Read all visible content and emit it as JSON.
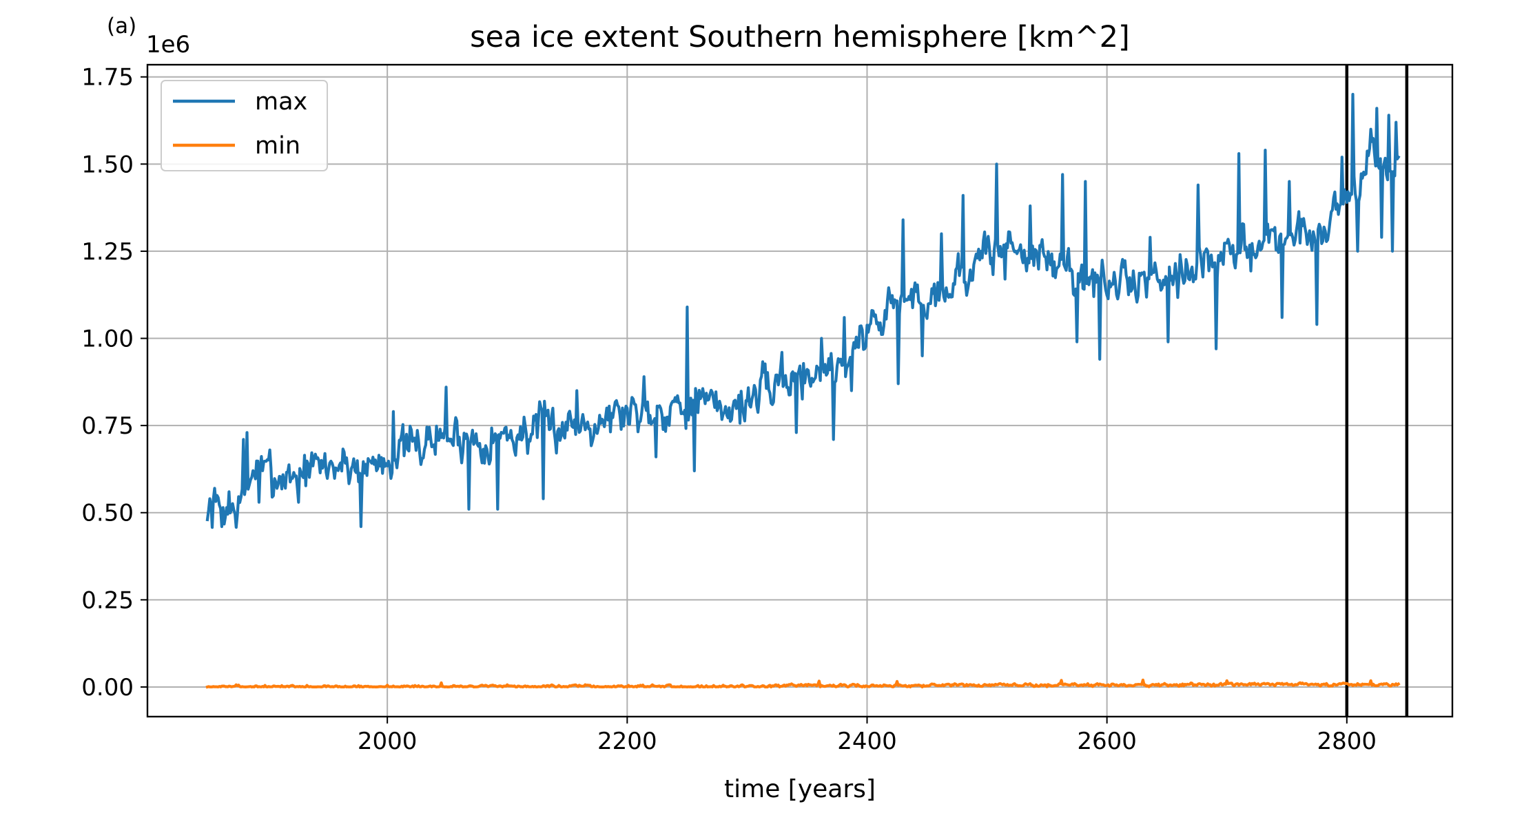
{
  "panel_label": "(a)",
  "chart_data": {
    "type": "line",
    "title": "sea ice extent Southern hemisphere [km^2]",
    "xlabel": "time [years]",
    "ylabel": "",
    "y_offset_label": "1e6",
    "xlim": [
      1800,
      2888
    ],
    "ylim": [
      -0.085,
      1.785
    ],
    "y_scale_factor": 1000000,
    "xticks": [
      2000,
      2200,
      2400,
      2600,
      2800
    ],
    "xtick_labels": [
      "2000",
      "2200",
      "2400",
      "2600",
      "2800"
    ],
    "yticks": [
      0,
      0.25,
      0.5,
      0.75,
      1.0,
      1.25,
      1.5,
      1.75
    ],
    "ytick_labels": [
      "0.00",
      "0.25",
      "0.50",
      "0.75",
      "1.00",
      "1.25",
      "1.50",
      "1.75"
    ],
    "grid": true,
    "legend_position": "top-left",
    "vertical_lines": [
      2800,
      2850
    ],
    "vertical_line_color": "#000000",
    "x_start": 1850,
    "x_end": 2843,
    "series": [
      {
        "name": "max",
        "color": "#1f77b4",
        "anchors": [
          [
            1850,
            0.49
          ],
          [
            1860,
            0.52
          ],
          [
            1870,
            0.5
          ],
          [
            1880,
            0.53
          ],
          [
            1890,
            0.64
          ],
          [
            1900,
            0.6
          ],
          [
            1920,
            0.61
          ],
          [
            1940,
            0.63
          ],
          [
            1960,
            0.64
          ],
          [
            1980,
            0.63
          ],
          [
            2000,
            0.66
          ],
          [
            2020,
            0.69
          ],
          [
            2050,
            0.72
          ],
          [
            2080,
            0.71
          ],
          [
            2100,
            0.72
          ],
          [
            2130,
            0.74
          ],
          [
            2160,
            0.76
          ],
          [
            2200,
            0.79
          ],
          [
            2230,
            0.8
          ],
          [
            2250,
            0.82
          ],
          [
            2280,
            0.8
          ],
          [
            2300,
            0.82
          ],
          [
            2330,
            0.88
          ],
          [
            2350,
            0.9
          ],
          [
            2380,
            0.93
          ],
          [
            2400,
            1.02
          ],
          [
            2420,
            1.1
          ],
          [
            2450,
            1.12
          ],
          [
            2480,
            1.18
          ],
          [
            2500,
            1.24
          ],
          [
            2520,
            1.27
          ],
          [
            2550,
            1.22
          ],
          [
            2580,
            1.18
          ],
          [
            2600,
            1.15
          ],
          [
            2630,
            1.17
          ],
          [
            2660,
            1.2
          ],
          [
            2700,
            1.23
          ],
          [
            2730,
            1.28
          ],
          [
            2760,
            1.3
          ],
          [
            2780,
            1.31
          ],
          [
            2800,
            1.42
          ],
          [
            2820,
            1.5
          ],
          [
            2843,
            1.5
          ]
        ],
        "noise_amplitude": 0.07,
        "seed": 7,
        "spikes": [
          [
            1850,
            0.48
          ],
          [
            1852,
            0.54
          ],
          [
            1856,
            0.57
          ],
          [
            1862,
            0.46
          ],
          [
            1868,
            0.56
          ],
          [
            1880,
            0.71
          ],
          [
            1883,
            0.73
          ],
          [
            1893,
            0.53
          ],
          [
            1902,
            0.68
          ],
          [
            1926,
            0.53
          ],
          [
            1978,
            0.46
          ],
          [
            2005,
            0.79
          ],
          [
            2049,
            0.86
          ],
          [
            2068,
            0.51
          ],
          [
            2092,
            0.51
          ],
          [
            2130,
            0.54
          ],
          [
            2158,
            0.85
          ],
          [
            2214,
            0.89
          ],
          [
            2224,
            0.66
          ],
          [
            2250,
            1.09
          ],
          [
            2256,
            0.62
          ],
          [
            2329,
            0.96
          ],
          [
            2341,
            0.73
          ],
          [
            2362,
            1.0
          ],
          [
            2372,
            0.71
          ],
          [
            2381,
            1.06
          ],
          [
            2387,
            0.85
          ],
          [
            2404,
            1.08
          ],
          [
            2426,
            0.87
          ],
          [
            2430,
            1.34
          ],
          [
            2446,
            0.95
          ],
          [
            2462,
            1.3
          ],
          [
            2480,
            1.41
          ],
          [
            2508,
            1.5
          ],
          [
            2515,
            1.17
          ],
          [
            2536,
            1.38
          ],
          [
            2563,
            1.47
          ],
          [
            2575,
            0.99
          ],
          [
            2582,
            1.45
          ],
          [
            2594,
            0.94
          ],
          [
            2636,
            1.29
          ],
          [
            2651,
            0.99
          ],
          [
            2676,
            1.44
          ],
          [
            2691,
            0.97
          ],
          [
            2710,
            1.53
          ],
          [
            2732,
            1.54
          ],
          [
            2746,
            1.06
          ],
          [
            2752,
            1.45
          ],
          [
            2775,
            1.04
          ],
          [
            2796,
            1.52
          ],
          [
            2805,
            1.7
          ],
          [
            2809,
            1.25
          ],
          [
            2820,
            1.6
          ],
          [
            2825,
            1.66
          ],
          [
            2829,
            1.29
          ],
          [
            2835,
            1.64
          ],
          [
            2838,
            1.25
          ],
          [
            2841,
            1.62
          ],
          [
            2843,
            1.52
          ]
        ]
      },
      {
        "name": "min",
        "color": "#ff7f0e",
        "anchors": [
          [
            1850,
            0.0
          ],
          [
            2300,
            0.002
          ],
          [
            2400,
            0.004
          ],
          [
            2600,
            0.006
          ],
          [
            2843,
            0.008
          ]
        ],
        "noise_amplitude": 0.005,
        "seed": 13,
        "spikes": [
          [
            2045,
            0.012
          ],
          [
            2360,
            0.017
          ],
          [
            2425,
            0.016
          ],
          [
            2562,
            0.019
          ],
          [
            2630,
            0.02
          ],
          [
            2700,
            0.018
          ],
          [
            2820,
            0.018
          ]
        ]
      }
    ]
  }
}
